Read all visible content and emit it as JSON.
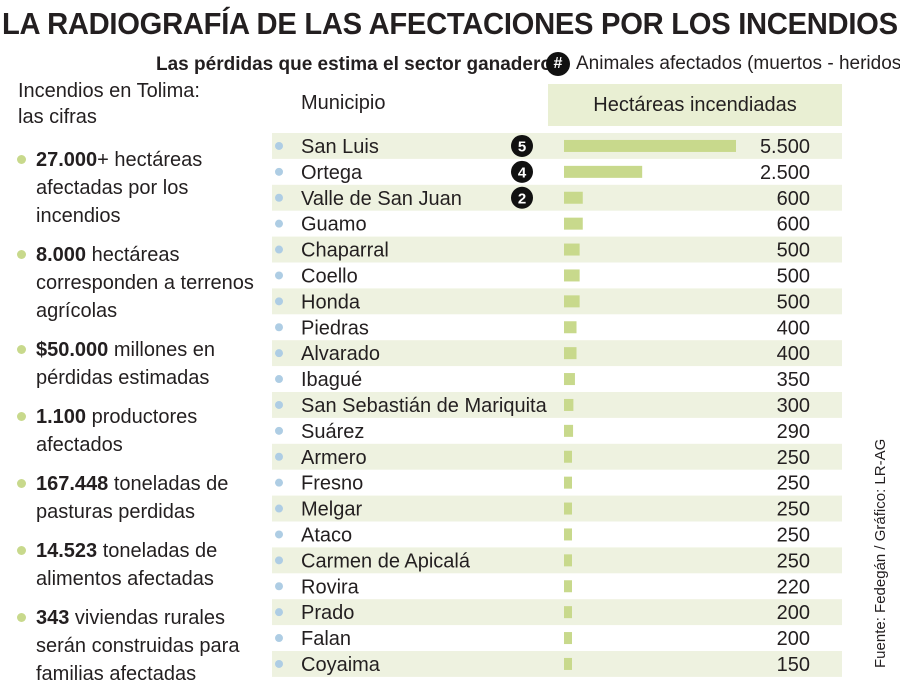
{
  "header": {
    "title": "LA RADIOGRAFÍA DE LAS AFECTACIONES POR LOS INCENDIOS",
    "subtitle": "Las pérdidas que estima el sector ganadero",
    "legend_symbol": "#",
    "legend_text": "Animales afectados (muertos - heridos)"
  },
  "sidebar": {
    "heading": "Incendios en Tolima: las cifras",
    "facts": [
      {
        "value": "27.000",
        "text": "+ hectáreas afectadas por los incendios"
      },
      {
        "value": "8.000",
        "text": " hectáreas corresponden a terrenos agrícolas"
      },
      {
        "value": "$50.000",
        "text": " millones en pérdidas estimadas"
      },
      {
        "value": "1.100",
        "text": " productores afectados"
      },
      {
        "value": "167.448",
        "text": " toneladas de pasturas perdidas"
      },
      {
        "value": "14.523",
        "text": " toneladas de alimentos afectadas"
      },
      {
        "value": "343",
        "text": " viviendas rurales serán construidas para familias afectadas"
      }
    ]
  },
  "source": "Fuente: Fedegán / Gráfico: LR-AG",
  "colors": {
    "bar": "#c8d98c",
    "row_band": "#eef2e0",
    "header_band": "#e9efd3",
    "bullet": "#aecde4",
    "badge": "#111111"
  },
  "chart_data": {
    "type": "bar",
    "orientation": "horizontal",
    "xlabel": "Municipio",
    "ylabel": "Hectáreas incendiadas",
    "categories": [
      "San Luis",
      "Ortega",
      "Valle de San Juan",
      "Guamo",
      "Chaparral",
      "Coello",
      "Honda",
      "Piedras",
      "Alvarado",
      "Ibagué",
      "San Sebastián de Mariquita",
      "Suárez",
      "Armero",
      "Fresno",
      "Melgar",
      "Ataco",
      "Carmen de Apicalá",
      "Rovira",
      "Prado",
      "Falan",
      "Coyaima"
    ],
    "values": [
      5500,
      2500,
      600,
      600,
      500,
      500,
      500,
      400,
      400,
      350,
      300,
      290,
      250,
      250,
      250,
      250,
      250,
      220,
      200,
      200,
      150
    ],
    "value_labels": [
      "5.500",
      "2.500",
      "600",
      "600",
      "500",
      "500",
      "500",
      "400",
      "400",
      "350",
      "300",
      "290",
      "250",
      "250",
      "250",
      "250",
      "250",
      "220",
      "200",
      "200",
      "150"
    ],
    "animales_afectados": [
      {
        "municipio": "San Luis",
        "label": "5"
      },
      {
        "municipio": "Ortega",
        "label": "4"
      },
      {
        "municipio": "Valle de San Juan",
        "label": "2"
      }
    ]
  }
}
